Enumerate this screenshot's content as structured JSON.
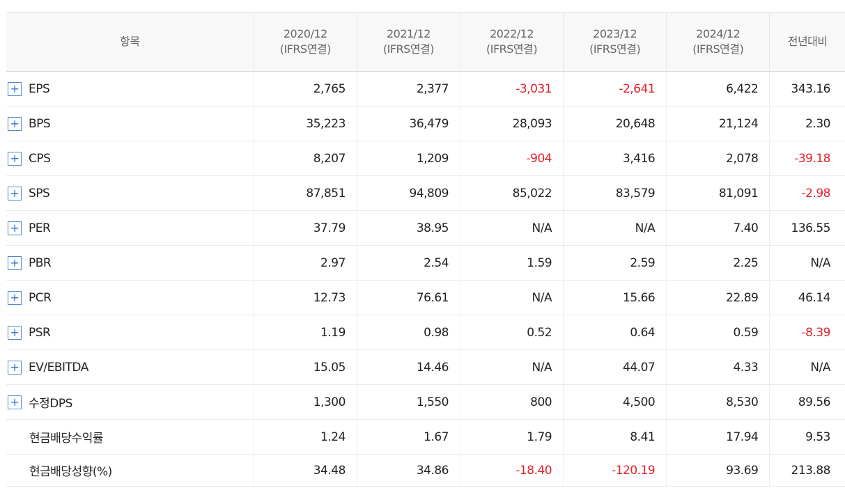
{
  "header": {
    "item_label": "항목",
    "yoy_label": "전년대비",
    "periods": [
      {
        "year": "2020/12",
        "basis": "(IFRS연결)"
      },
      {
        "year": "2021/12",
        "basis": "(IFRS연결)"
      },
      {
        "year": "2022/12",
        "basis": "(IFRS연결)"
      },
      {
        "year": "2023/12",
        "basis": "(IFRS연결)"
      },
      {
        "year": "2024/12",
        "basis": "(IFRS연결)"
      }
    ]
  },
  "icons": {
    "expand": "+"
  },
  "colors": {
    "negative": "#e8202a",
    "expand_border": "#4e88d6",
    "header_bg": "#f8f8f9"
  },
  "rows": [
    {
      "label": "EPS",
      "values": [
        "2,765",
        "2,377",
        "-3,031",
        "-2,641",
        "6,422"
      ],
      "yoy": "343.16"
    },
    {
      "label": "BPS",
      "values": [
        "35,223",
        "36,479",
        "28,093",
        "20,648",
        "21,124"
      ],
      "yoy": "2.30"
    },
    {
      "label": "CPS",
      "values": [
        "8,207",
        "1,209",
        "-904",
        "3,416",
        "2,078"
      ],
      "yoy": "-39.18"
    },
    {
      "label": "SPS",
      "values": [
        "87,851",
        "94,809",
        "85,022",
        "83,579",
        "81,091"
      ],
      "yoy": "-2.98"
    },
    {
      "label": "PER",
      "values": [
        "37.79",
        "38.95",
        "N/A",
        "N/A",
        "7.40"
      ],
      "yoy": "136.55"
    },
    {
      "label": "PBR",
      "values": [
        "2.97",
        "2.54",
        "1.59",
        "2.59",
        "2.25"
      ],
      "yoy": "N/A"
    },
    {
      "label": "PCR",
      "values": [
        "12.73",
        "76.61",
        "N/A",
        "15.66",
        "22.89"
      ],
      "yoy": "46.14"
    },
    {
      "label": "PSR",
      "values": [
        "1.19",
        "0.98",
        "0.52",
        "0.64",
        "0.59"
      ],
      "yoy": "-8.39"
    },
    {
      "label": "EV/EBITDA",
      "values": [
        "15.05",
        "14.46",
        "N/A",
        "44.07",
        "4.33"
      ],
      "yoy": "N/A"
    },
    {
      "label": "수정DPS",
      "values": [
        "1,300",
        "1,550",
        "800",
        "4,500",
        "8,530"
      ],
      "yoy": "89.56"
    },
    {
      "label": "현금배당수익률",
      "values": [
        "1.24",
        "1.67",
        "1.79",
        "8.41",
        "17.94"
      ],
      "yoy": "9.53"
    },
    {
      "label": "현금배당성향(%)",
      "values": [
        "34.48",
        "34.86",
        "-18.40",
        "-120.19",
        "93.69"
      ],
      "yoy": "213.88"
    }
  ]
}
